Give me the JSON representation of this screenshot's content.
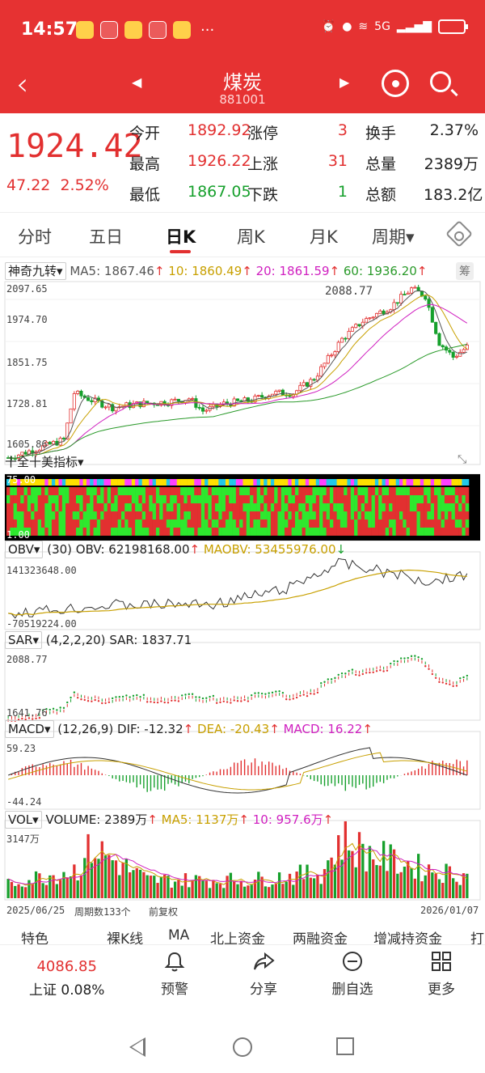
{
  "status_bar": {
    "time": "14:57",
    "network": "5G"
  },
  "nav": {
    "title": "煤炭",
    "code": "881001"
  },
  "quote": {
    "price": "1924.42",
    "change": "47.22",
    "change_pct": "2.52%",
    "rows": [
      {
        "l1": "今开",
        "v1": "1892.92",
        "c1": "red",
        "l2": "涨停",
        "v2": "3",
        "c2": "red",
        "l3": "换手",
        "v3": "2.37%",
        "c3": "dark"
      },
      {
        "l1": "最高",
        "v1": "1926.22",
        "c1": "red",
        "l2": "上涨",
        "v2": "31",
        "c2": "red",
        "l3": "总量",
        "v3": "2389万",
        "c3": "dark"
      },
      {
        "l1": "最低",
        "v1": "1867.05",
        "c1": "green",
        "l2": "下跌",
        "v2": "1",
        "c2": "green",
        "l3": "总额",
        "v3": "183.2亿",
        "c3": "dark"
      }
    ]
  },
  "tabs": [
    "分时",
    "五日",
    "日K",
    "周K",
    "月K",
    "周期"
  ],
  "active_tab": "日K",
  "kline": {
    "indicator": "神奇九转",
    "ma": [
      {
        "label": "MA5: 1867.46",
        "color": "#555555"
      },
      {
        "label": "10: 1860.49",
        "color": "#c8a000"
      },
      {
        "label": "20: 1861.59",
        "color": "#d020c0"
      },
      {
        "label": "60: 1936.20",
        "color": "#2a9a2a"
      }
    ],
    "chip_label": "筹",
    "y_labels": [
      "2097.65",
      "1974.70",
      "1851.75",
      "1728.81",
      "1605.86"
    ],
    "high_label": "2088.77"
  },
  "shiquan": {
    "title": "十全十美指标",
    "top": "75.00",
    "bottom": "1.00"
  },
  "obv": {
    "name": "OBV",
    "params": "(30)",
    "obv": "OBV: 62198168.00",
    "maobv": "MAOBV: 53455976.00",
    "top": "141323648.00",
    "bottom": "-70519224.00"
  },
  "sar": {
    "name": "SAR",
    "params": "(4,2,2,20)",
    "value": "SAR: 1837.71",
    "top": "2088.77",
    "bottom": "1641.76"
  },
  "macd": {
    "name": "MACD",
    "params": "(12,26,9)",
    "dif": "DIF: -12.32",
    "dea": "DEA: -20.43",
    "macd": "MACD: 16.22",
    "top": "59.23",
    "bottom": "-44.24"
  },
  "volume": {
    "name": "VOL",
    "vol": "VOLUME: 2389万",
    "ma5": "MA5: 1137万",
    "ma10": "10: 957.6万",
    "top": "3147万"
  },
  "footer_info": {
    "start_date": "2025/06/25",
    "period_count": "周期数133个",
    "adjust": "前复权",
    "end_date": "2026/01/07"
  },
  "bottom_tabs": [
    "特色",
    "裸K线",
    "MA",
    "北上资金",
    "两融资金",
    "增减持资金",
    "打"
  ],
  "bottom_nav": {
    "index_value": "4086.85",
    "index_label": "上证 0.08%",
    "buttons": [
      {
        "label": "预警",
        "icon": "bell-icon"
      },
      {
        "label": "分享",
        "icon": "share-icon"
      },
      {
        "label": "删自选",
        "icon": "remove-icon"
      },
      {
        "label": "更多",
        "icon": "grid-icon"
      }
    ]
  },
  "colors": {
    "up": "#e23030",
    "down": "#16a02c",
    "brand": "#e63232"
  }
}
